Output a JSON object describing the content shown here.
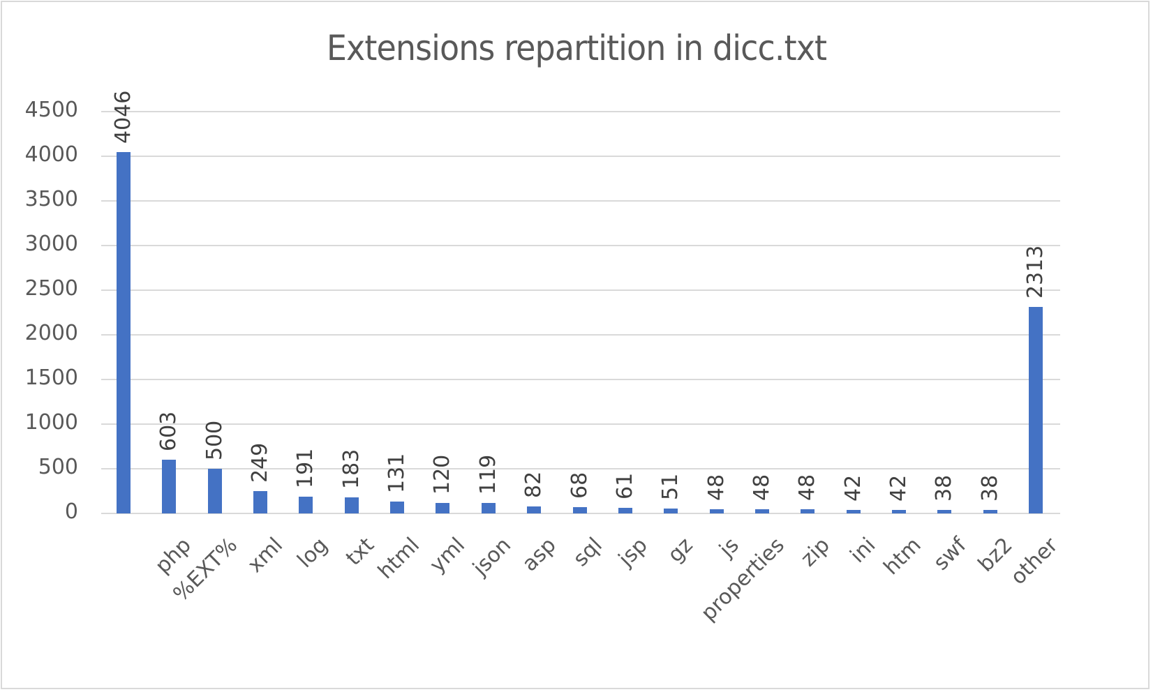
{
  "chart_data": {
    "type": "bar",
    "title": "Extensions repartition in dicc.txt",
    "xlabel": "",
    "ylabel": "",
    "ylim": [
      0,
      4500
    ],
    "yticks": [
      0,
      500,
      1000,
      1500,
      2000,
      2500,
      3000,
      3500,
      4000,
      4500
    ],
    "grid": true,
    "legend": null,
    "categories": [
      "",
      "php",
      "%EXT%",
      "xml",
      "log",
      "txt",
      "html",
      "yml",
      "json",
      "asp",
      "sql",
      "jsp",
      "gz",
      "js",
      "properties",
      "zip",
      "ini",
      "htm",
      "swf",
      "bz2",
      "other"
    ],
    "values": [
      4046,
      603,
      500,
      249,
      191,
      183,
      131,
      120,
      119,
      82,
      68,
      61,
      51,
      48,
      48,
      48,
      42,
      42,
      38,
      38,
      2313
    ],
    "data_labels": [
      "4046",
      "603",
      "500",
      "249",
      "191",
      "183",
      "131",
      "120",
      "119",
      "82",
      "68",
      "61",
      "51",
      "48",
      "48",
      "48",
      "42",
      "42",
      "38",
      "38",
      "2313"
    ],
    "bar_color": "#4472c4",
    "grid_color": "#d9d9d9",
    "text_color": "#595959"
  }
}
